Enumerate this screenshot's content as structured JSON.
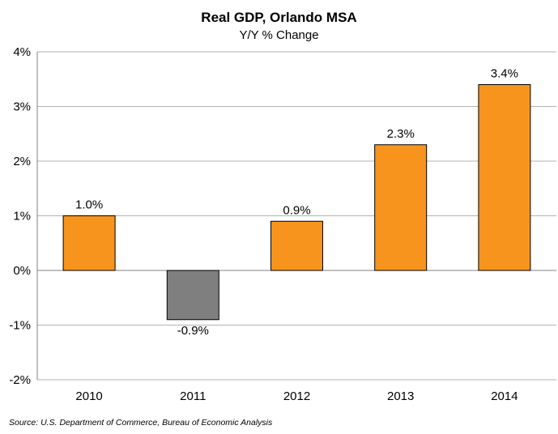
{
  "chart_data": {
    "type": "bar",
    "title": "Real GDP, Orlando MSA",
    "subtitle": "Y/Y  % Change",
    "categories": [
      "2010",
      "2011",
      "2012",
      "2013",
      "2014"
    ],
    "values": [
      1.0,
      -0.9,
      0.9,
      2.3,
      3.4
    ],
    "data_labels": [
      "1.0%",
      "-0.9%",
      "0.9%",
      "2.3%",
      "3.4%"
    ],
    "ylim": [
      -2,
      4
    ],
    "yticks": [
      4,
      3,
      2,
      1,
      0,
      -1,
      -2
    ],
    "ytick_labels": [
      "4%",
      "3%",
      "2%",
      "1%",
      "0%",
      "-1%",
      "-2%"
    ],
    "xlabel": "",
    "ylabel": "",
    "grid": true,
    "legend": "none",
    "colors": {
      "positive": "#F7941D",
      "negative": "#7F7F80",
      "bar_border": "#000000",
      "grid": "#B3B3B3",
      "axis": "#808080"
    }
  },
  "source": "Source: U.S. Department of Commerce, Bureau of Economic Analysis"
}
